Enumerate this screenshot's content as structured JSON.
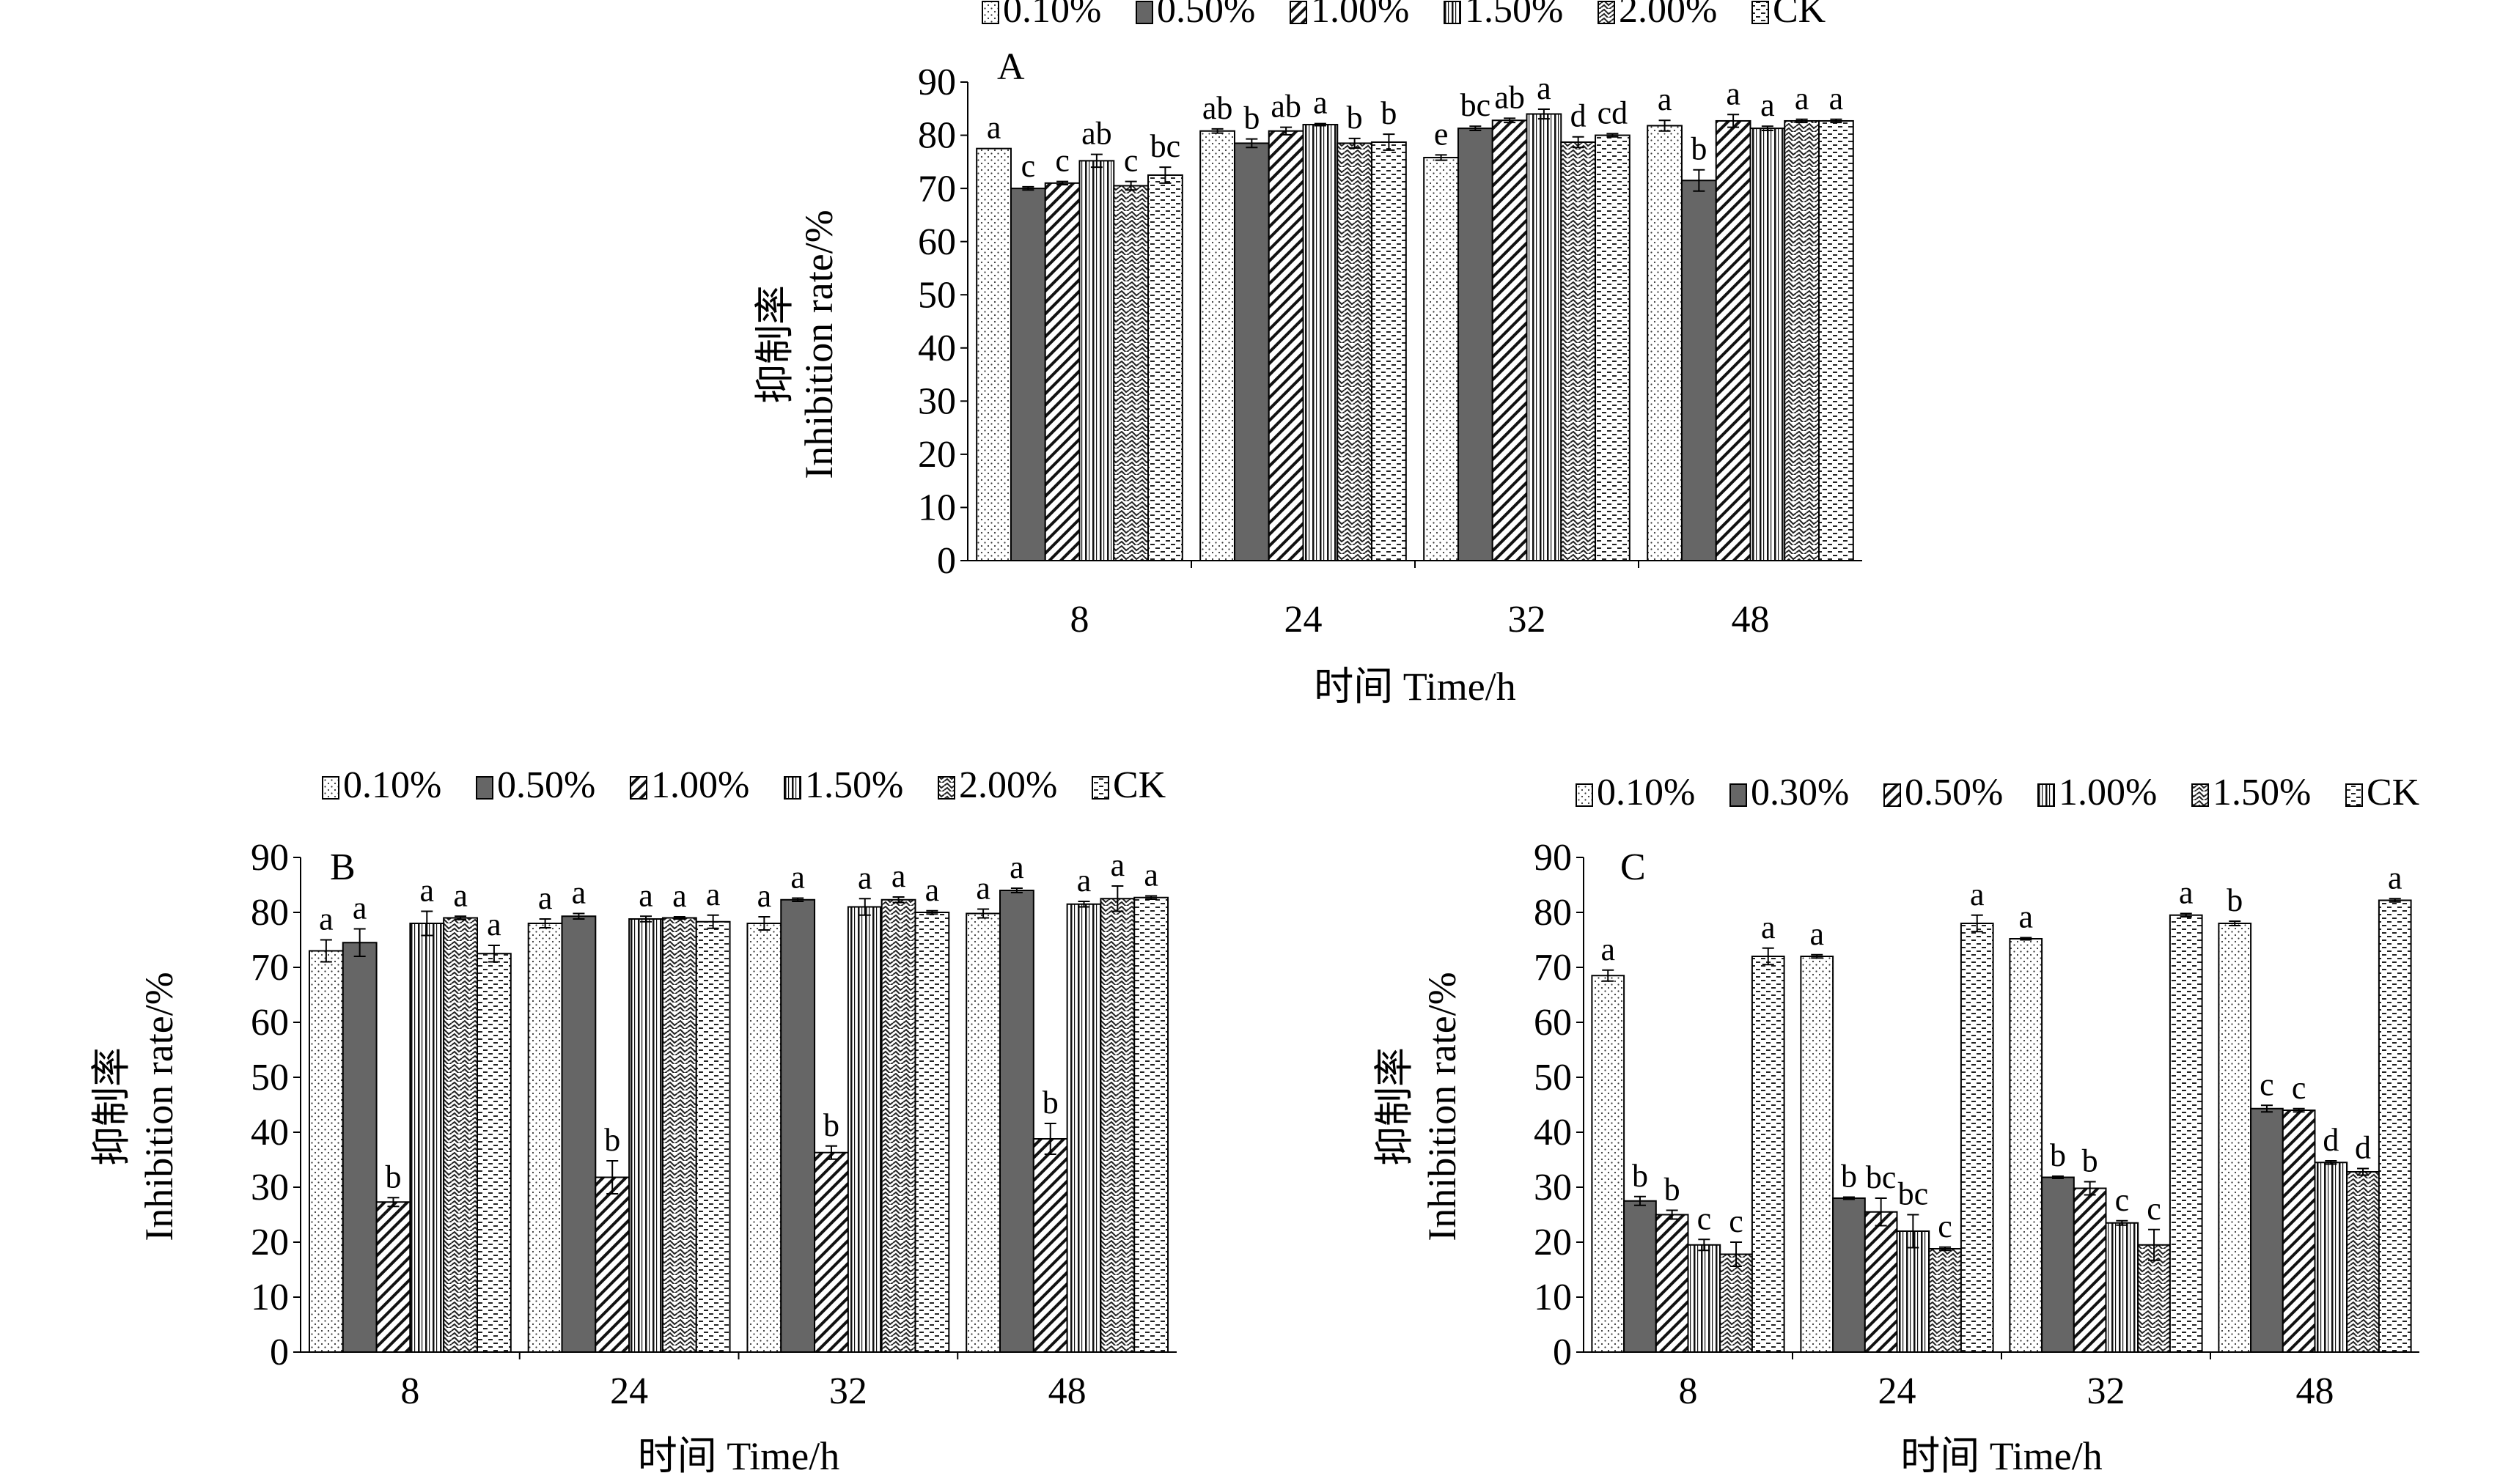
{
  "chart_data": [
    {
      "type": "bar",
      "panel": "A",
      "categories": [
        "8",
        "24",
        "32",
        "48"
      ],
      "xlabel": "时间 Time/h",
      "ylabel_cn": "抑制率",
      "ylabel_en": "Inhibition rate/%",
      "ylim": [
        0,
        90
      ],
      "yticks": [
        0,
        10,
        20,
        30,
        40,
        50,
        60,
        70,
        80,
        90
      ],
      "series": [
        {
          "name": "0.10%",
          "pattern": "dots",
          "values": [
            77.5,
            80.8,
            75.8,
            81.8
          ],
          "errors": [
            0,
            0.4,
            0.5,
            1.0
          ],
          "letters": [
            "a",
            "ab",
            "e",
            "a"
          ]
        },
        {
          "name": "0.50%",
          "pattern": "solid",
          "values": [
            70.0,
            78.5,
            81.3,
            71.5
          ],
          "errors": [
            0.3,
            0.8,
            0.4,
            2.0
          ],
          "letters": [
            "c",
            "b",
            "bc",
            "b"
          ]
        },
        {
          "name": "1.00%",
          "pattern": "diag",
          "values": [
            71.0,
            80.8,
            82.8,
            82.7
          ],
          "errors": [
            0.3,
            0.7,
            0.4,
            1.2
          ],
          "letters": [
            "c",
            "ab",
            "ab",
            "a"
          ]
        },
        {
          "name": "1.50%",
          "pattern": "vert",
          "values": [
            75.2,
            82.0,
            84.0,
            81.3
          ],
          "errors": [
            1.2,
            0.2,
            0.9,
            0.4
          ],
          "letters": [
            "ab",
            "a",
            "a",
            "a"
          ]
        },
        {
          "name": "2.00%",
          "pattern": "wave",
          "values": [
            70.5,
            78.5,
            78.7,
            82.7
          ],
          "errors": [
            0.8,
            0.9,
            1.0,
            0.3
          ],
          "letters": [
            "c",
            "b",
            "d",
            "a"
          ]
        },
        {
          "name": "CK",
          "pattern": "dash",
          "values": [
            72.5,
            78.7,
            80.0,
            82.7
          ],
          "errors": [
            1.5,
            1.5,
            0.3,
            0.3
          ],
          "letters": [
            "bc",
            "b",
            "cd",
            "a"
          ]
        }
      ]
    },
    {
      "type": "bar",
      "panel": "B",
      "categories": [
        "8",
        "24",
        "32",
        "48"
      ],
      "xlabel": "时间 Time/h",
      "ylabel_cn": "抑制率",
      "ylabel_en": "Inhibition rate/%",
      "ylim": [
        0,
        90
      ],
      "yticks": [
        0,
        10,
        20,
        30,
        40,
        50,
        60,
        70,
        80,
        90
      ],
      "series": [
        {
          "name": "0.10%",
          "pattern": "dots",
          "values": [
            73.0,
            78.0,
            78.0,
            79.8
          ],
          "errors": [
            2.0,
            0.8,
            1.2,
            0.8
          ],
          "letters": [
            "a",
            "a",
            "a",
            "a"
          ]
        },
        {
          "name": "0.50%",
          "pattern": "solid",
          "values": [
            74.5,
            79.3,
            82.3,
            84.0
          ],
          "errors": [
            2.5,
            0.5,
            0.3,
            0.4
          ],
          "letters": [
            "a",
            "a",
            "a",
            "a"
          ]
        },
        {
          "name": "1.00%",
          "pattern": "diag",
          "values": [
            27.3,
            31.8,
            36.3,
            38.8
          ],
          "errors": [
            0.8,
            3.0,
            1.2,
            2.8
          ],
          "letters": [
            "b",
            "b",
            "b",
            "b"
          ]
        },
        {
          "name": "1.50%",
          "pattern": "vert",
          "values": [
            78.0,
            78.8,
            81.0,
            81.5
          ],
          "errors": [
            2.2,
            0.5,
            1.5,
            0.5
          ],
          "letters": [
            "a",
            "a",
            "a",
            "a"
          ]
        },
        {
          "name": "2.00%",
          "pattern": "wave",
          "values": [
            79.0,
            79.0,
            82.3,
            82.5
          ],
          "errors": [
            0.3,
            0.2,
            0.5,
            2.3
          ],
          "letters": [
            "a",
            "a",
            "a",
            "a"
          ]
        },
        {
          "name": "CK",
          "pattern": "dash",
          "values": [
            72.5,
            78.3,
            80.0,
            82.7
          ],
          "errors": [
            1.5,
            1.2,
            0.3,
            0.3
          ],
          "letters": [
            "a",
            "a",
            "a",
            "a"
          ]
        }
      ]
    },
    {
      "type": "bar",
      "panel": "C",
      "categories": [
        "8",
        "24",
        "32",
        "48"
      ],
      "xlabel": "时间 Time/h",
      "ylabel_cn": "抑制率",
      "ylabel_en": "Inhibition rate/%",
      "ylim": [
        0,
        90
      ],
      "yticks": [
        0,
        10,
        20,
        30,
        40,
        50,
        60,
        70,
        80,
        90
      ],
      "series": [
        {
          "name": "0.10%",
          "pattern": "dots",
          "values": [
            68.5,
            72.0,
            75.2,
            78.0
          ],
          "errors": [
            1.0,
            0.3,
            0.2,
            0.4
          ],
          "letters": [
            "a",
            "a",
            "a",
            "b"
          ]
        },
        {
          "name": "0.30%",
          "pattern": "solid",
          "values": [
            27.5,
            28.0,
            31.8,
            44.3
          ],
          "errors": [
            0.8,
            0.2,
            0.2,
            0.6
          ],
          "letters": [
            "b",
            "b",
            "b",
            "c"
          ]
        },
        {
          "name": "0.50%",
          "pattern": "diag",
          "values": [
            25.0,
            25.5,
            29.8,
            44.0
          ],
          "errors": [
            0.8,
            2.5,
            1.2,
            0.3
          ],
          "letters": [
            "b",
            "bc",
            "b",
            "c"
          ]
        },
        {
          "name": "1.00%",
          "pattern": "vert",
          "values": [
            19.5,
            22.0,
            23.5,
            34.5
          ],
          "errors": [
            1.0,
            3.0,
            0.4,
            0.3
          ],
          "letters": [
            "c",
            "bc",
            "c",
            "d"
          ]
        },
        {
          "name": "1.50%",
          "pattern": "wave",
          "values": [
            17.8,
            18.8,
            19.5,
            32.8
          ],
          "errors": [
            2.2,
            0.3,
            2.8,
            0.6
          ],
          "letters": [
            "c",
            "c",
            "c",
            "d"
          ]
        },
        {
          "name": "CK",
          "pattern": "dash",
          "values": [
            72.0,
            78.0,
            79.5,
            82.2
          ],
          "errors": [
            1.5,
            1.5,
            0.3,
            0.3
          ],
          "letters": [
            "a",
            "a",
            "a",
            "a"
          ]
        }
      ]
    }
  ]
}
